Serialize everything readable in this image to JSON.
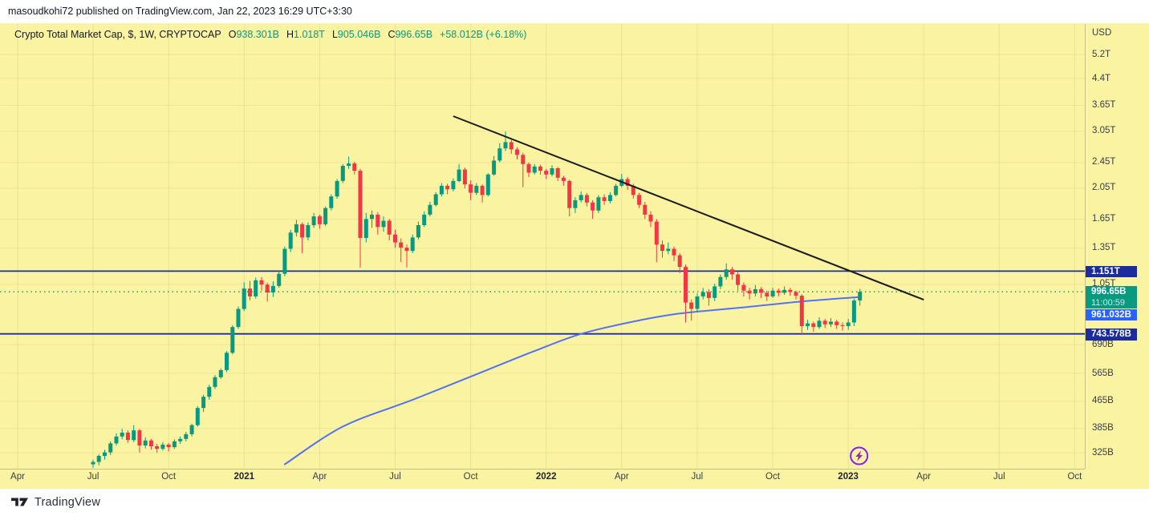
{
  "page": {
    "published_line": "masoudkohi72 published on TradingView.com, Jan 22, 2023 16:29 UTC+3:30",
    "brand": "TradingView"
  },
  "legend": {
    "title": "Crypto Total Market Cap, $, 1W, CRYPTOCAP",
    "open_label": "O",
    "open": "938.301B",
    "high_label": "H",
    "high": "1.018T",
    "low_label": "L",
    "low": "905.046B",
    "close_label": "C",
    "close": "996.65B",
    "change": "+58.012B (+6.18%)"
  },
  "price_scale": {
    "currency": "USD",
    "badges": {
      "resistance": {
        "label": "1.151T",
        "value": 1151,
        "color": "#1b2c9e"
      },
      "last_price": {
        "label": "996.65B",
        "value": 996.65,
        "color": "#089981"
      },
      "countdown": "11:00:59",
      "ma_value": {
        "label": "961.032B",
        "value": 961.032,
        "color": "#2962ff"
      },
      "support": {
        "label": "743.578B",
        "value": 743.578,
        "color": "#1b2c9e"
      }
    }
  },
  "chart_data": {
    "type": "candlestick",
    "title": "Crypto Total Market Cap",
    "symbol": "CRYPTOCAP",
    "currency": "USD",
    "interval": "1W",
    "unit": "billions USD",
    "first_candle_week": "2020-07-06",
    "grid": true,
    "y_axis": {
      "scale": "log",
      "ticks": [
        {
          "label": "5.2T",
          "value": 5200
        },
        {
          "label": "4.4T",
          "value": 4400
        },
        {
          "label": "3.65T",
          "value": 3650
        },
        {
          "label": "3.05T",
          "value": 3050
        },
        {
          "label": "2.45T",
          "value": 2450
        },
        {
          "label": "2.05T",
          "value": 2050
        },
        {
          "label": "1.65T",
          "value": 1650
        },
        {
          "label": "1.35T",
          "value": 1350
        },
        {
          "label": "1.05T",
          "value": 1050
        },
        {
          "label": "690B",
          "value": 690
        },
        {
          "label": "565B",
          "value": 565
        },
        {
          "label": "465B",
          "value": 465
        },
        {
          "label": "385B",
          "value": 385
        },
        {
          "label": "325B",
          "value": 325
        }
      ]
    },
    "x_axis": {
      "labels": [
        "Apr",
        "Jul",
        "Oct",
        "2021",
        "Apr",
        "Jul",
        "Oct",
        "2022",
        "Apr",
        "Jul",
        "Oct",
        "2023",
        "Apr",
        "Jul",
        "Oct"
      ]
    },
    "last_candle_ohlc": {
      "open": "938.301B",
      "high": "1.018T",
      "low": "905.046B",
      "close": "996.65B",
      "change": "+58.012B (+6.18%)"
    },
    "candles_ohlc": [
      [
        300,
        310,
        293,
        305
      ],
      [
        305,
        322,
        298,
        318
      ],
      [
        318,
        332,
        310,
        326
      ],
      [
        326,
        352,
        320,
        347
      ],
      [
        347,
        372,
        342,
        364
      ],
      [
        364,
        384,
        357,
        374
      ],
      [
        374,
        380,
        348,
        355
      ],
      [
        355,
        394,
        350,
        380
      ],
      [
        380,
        384,
        325,
        342
      ],
      [
        342,
        362,
        335,
        354
      ],
      [
        354,
        358,
        332,
        340
      ],
      [
        340,
        346,
        325,
        334
      ],
      [
        334,
        350,
        330,
        344
      ],
      [
        344,
        348,
        328,
        338
      ],
      [
        338,
        357,
        334,
        352
      ],
      [
        352,
        364,
        346,
        358
      ],
      [
        358,
        376,
        352,
        370
      ],
      [
        370,
        398,
        364,
        394
      ],
      [
        394,
        450,
        390,
        444
      ],
      [
        444,
        487,
        432,
        480
      ],
      [
        480,
        522,
        470,
        514
      ],
      [
        514,
        558,
        507,
        550
      ],
      [
        550,
        584,
        544,
        578
      ],
      [
        578,
        660,
        570,
        652
      ],
      [
        652,
        790,
        645,
        780
      ],
      [
        780,
        900,
        770,
        885
      ],
      [
        885,
        1065,
        872,
        1020
      ],
      [
        1020,
        1075,
        940,
        965
      ],
      [
        965,
        1100,
        950,
        1080
      ],
      [
        1080,
        1105,
        1005,
        1048
      ],
      [
        1048,
        1062,
        932,
        992
      ],
      [
        992,
        1072,
        962,
        1038
      ],
      [
        1038,
        1150,
        1025,
        1130
      ],
      [
        1130,
        1365,
        1110,
        1345
      ],
      [
        1345,
        1535,
        1315,
        1505
      ],
      [
        1505,
        1645,
        1465,
        1595
      ],
      [
        1595,
        1615,
        1305,
        1455
      ],
      [
        1455,
        1615,
        1425,
        1585
      ],
      [
        1585,
        1725,
        1555,
        1685
      ],
      [
        1685,
        1705,
        1545,
        1595
      ],
      [
        1595,
        1805,
        1575,
        1785
      ],
      [
        1785,
        1965,
        1755,
        1935
      ],
      [
        1935,
        2185,
        1905,
        2155
      ],
      [
        2155,
        2425,
        2125,
        2395
      ],
      [
        2395,
        2555,
        2345,
        2435
      ],
      [
        2435,
        2465,
        2255,
        2315
      ],
      [
        2315,
        2345,
        1180,
        1450
      ],
      [
        1450,
        1725,
        1405,
        1655
      ],
      [
        1655,
        1755,
        1555,
        1705
      ],
      [
        1705,
        1735,
        1485,
        1565
      ],
      [
        1565,
        1685,
        1515,
        1635
      ],
      [
        1635,
        1655,
        1425,
        1485
      ],
      [
        1485,
        1535,
        1355,
        1405
      ],
      [
        1405,
        1445,
        1225,
        1355
      ],
      [
        1355,
        1385,
        1180,
        1325
      ],
      [
        1325,
        1485,
        1305,
        1455
      ],
      [
        1455,
        1625,
        1435,
        1585
      ],
      [
        1585,
        1745,
        1565,
        1705
      ],
      [
        1705,
        1865,
        1685,
        1825
      ],
      [
        1825,
        1995,
        1805,
        1965
      ],
      [
        1965,
        2125,
        1935,
        2085
      ],
      [
        2085,
        2115,
        1965,
        2035
      ],
      [
        2035,
        2195,
        2005,
        2155
      ],
      [
        2155,
        2425,
        2135,
        2335
      ],
      [
        2335,
        2365,
        2045,
        2105
      ],
      [
        2105,
        2165,
        1885,
        1985
      ],
      [
        1985,
        2125,
        1955,
        2085
      ],
      [
        2085,
        2105,
        1855,
        1955
      ],
      [
        1955,
        2275,
        1935,
        2255
      ],
      [
        2255,
        2565,
        2235,
        2485
      ],
      [
        2485,
        2805,
        2455,
        2705
      ],
      [
        2705,
        3045,
        2655,
        2825
      ],
      [
        2825,
        2865,
        2605,
        2685
      ],
      [
        2685,
        2725,
        2505,
        2585
      ],
      [
        2585,
        2625,
        2065,
        2425
      ],
      [
        2425,
        2455,
        2215,
        2285
      ],
      [
        2285,
        2425,
        2255,
        2385
      ],
      [
        2385,
        2415,
        2255,
        2315
      ],
      [
        2315,
        2345,
        2185,
        2255
      ],
      [
        2255,
        2405,
        2225,
        2355
      ],
      [
        2355,
        2375,
        2155,
        2205
      ],
      [
        2205,
        2235,
        2085,
        2155
      ],
      [
        2155,
        2175,
        1685,
        1785
      ],
      [
        1785,
        1925,
        1725,
        1885
      ],
      [
        1885,
        2005,
        1855,
        1955
      ],
      [
        1955,
        1985,
        1805,
        1855
      ],
      [
        1855,
        1885,
        1655,
        1755
      ],
      [
        1755,
        1955,
        1725,
        1925
      ],
      [
        1925,
        1965,
        1825,
        1875
      ],
      [
        1875,
        1995,
        1845,
        1955
      ],
      [
        1955,
        2115,
        1935,
        2085
      ],
      [
        2085,
        2265,
        2065,
        2185
      ],
      [
        2185,
        2215,
        2025,
        2085
      ],
      [
        2085,
        2115,
        1905,
        1955
      ],
      [
        1955,
        1985,
        1785,
        1825
      ],
      [
        1825,
        1865,
        1655,
        1705
      ],
      [
        1705,
        1745,
        1565,
        1625
      ],
      [
        1625,
        1655,
        1225,
        1385
      ],
      [
        1385,
        1425,
        1265,
        1325
      ],
      [
        1325,
        1405,
        1295,
        1345
      ],
      [
        1345,
        1365,
        1235,
        1285
      ],
      [
        1285,
        1305,
        1135,
        1185
      ],
      [
        1185,
        1205,
        805,
        925
      ],
      [
        925,
        945,
        815,
        885
      ],
      [
        885,
        985,
        865,
        965
      ],
      [
        965,
        1025,
        945,
        995
      ],
      [
        995,
        1015,
        905,
        955
      ],
      [
        955,
        1055,
        935,
        1035
      ],
      [
        1035,
        1125,
        1015,
        1105
      ],
      [
        1105,
        1215,
        1085,
        1165
      ],
      [
        1165,
        1185,
        1085,
        1125
      ],
      [
        1125,
        1145,
        1005,
        1045
      ],
      [
        1045,
        1065,
        965,
        1005
      ],
      [
        1005,
        1025,
        945,
        985
      ],
      [
        985,
        1045,
        965,
        1015
      ],
      [
        1015,
        1030,
        955,
        990
      ],
      [
        990,
        1005,
        935,
        965
      ],
      [
        965,
        1025,
        955,
        1005
      ],
      [
        1005,
        1020,
        965,
        990
      ],
      [
        990,
        1035,
        975,
        1010
      ],
      [
        1010,
        1025,
        970,
        995
      ],
      [
        995,
        1005,
        945,
        970
      ],
      [
        970,
        980,
        738,
        785
      ],
      [
        785,
        820,
        765,
        800
      ],
      [
        800,
        810,
        755,
        780
      ],
      [
        780,
        835,
        770,
        815
      ],
      [
        815,
        825,
        775,
        795
      ],
      [
        795,
        830,
        780,
        810
      ],
      [
        810,
        820,
        770,
        790
      ],
      [
        790,
        805,
        760,
        785
      ],
      [
        785,
        825,
        765,
        805
      ],
      [
        805,
        950,
        785,
        938
      ],
      [
        938.301,
        1018,
        905.046,
        996.65
      ]
    ],
    "overlays": {
      "horizontal_lines": [
        {
          "value": 1151,
          "label": "1.151T",
          "color": "#1b2c9e"
        },
        {
          "value": 743.578,
          "label": "743.578B",
          "color": "#1b2c9e"
        }
      ],
      "last_price_line": {
        "value": 996.65,
        "style": "dotted",
        "color": "#089981"
      },
      "trendline": {
        "from_week": 62,
        "from_value": 3385,
        "to_week": 143,
        "to_value": 943,
        "color": "#1c1c1c"
      },
      "ma_line": {
        "color": "#5472f0",
        "points_week_value": [
          [
            33,
            300
          ],
          [
            43,
            390
          ],
          [
            55,
            470
          ],
          [
            68,
            580
          ],
          [
            76,
            660
          ],
          [
            84,
            743.578
          ],
          [
            93,
            810
          ],
          [
            101,
            857
          ],
          [
            111,
            891
          ],
          [
            122,
            932
          ],
          [
            132,
            961.032
          ]
        ]
      }
    },
    "marker": {
      "type": "flash",
      "week": 132,
      "color": "#9c27b0"
    },
    "colors": {
      "up": "#089981",
      "down": "#f23645",
      "background": "#faf3a1"
    }
  }
}
